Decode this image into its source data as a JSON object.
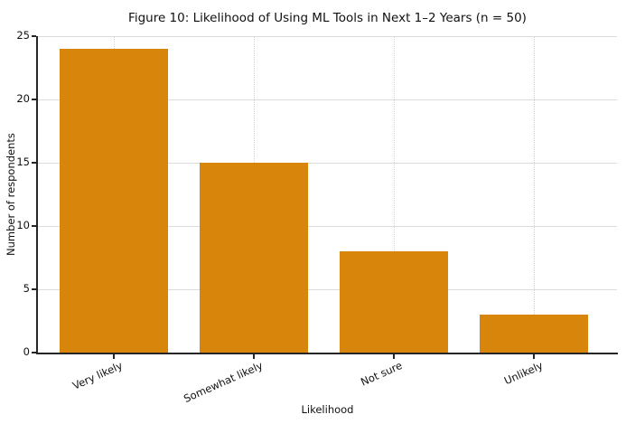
{
  "chart_data": {
    "type": "bar",
    "title": "Figure 10: Likelihood of Using ML Tools in Next 1–2 Years (n = 50)",
    "categories": [
      "Very likely",
      "Somewhat likely",
      "Not sure",
      "Unlikely"
    ],
    "values": [
      24,
      15,
      8,
      3
    ],
    "xlabel": "Likelihood",
    "ylabel": "Number of respondents",
    "ylim": [
      0,
      25
    ],
    "yticks": [
      0,
      5,
      10,
      15,
      20,
      25
    ],
    "n": 50,
    "legend": "none",
    "grid": "on",
    "xtick_rotation_deg": 24,
    "colors": {
      "bar_fill": "#d8860b",
      "axis": "#262626",
      "hgrid": "#dcdcdc",
      "vgrid": "#d4d4d4",
      "text": "#111111",
      "background": "#ffffff"
    }
  }
}
